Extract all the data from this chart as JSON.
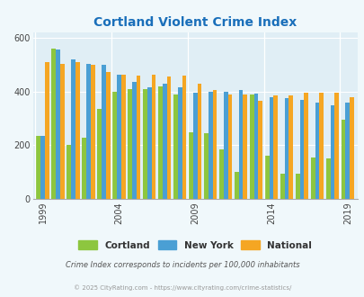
{
  "title": "Cortland Violent Crime Index",
  "title_color": "#1a6fba",
  "years": [
    1999,
    2000,
    2001,
    2002,
    2003,
    2004,
    2005,
    2006,
    2007,
    2008,
    2009,
    2010,
    2011,
    2012,
    2013,
    2014,
    2015,
    2016,
    2017,
    2018,
    2019
  ],
  "cortland": [
    235,
    560,
    200,
    230,
    335,
    400,
    410,
    410,
    420,
    390,
    250,
    245,
    185,
    100,
    390,
    160,
    95,
    95,
    155,
    150,
    295
  ],
  "newyork": [
    235,
    558,
    520,
    505,
    500,
    465,
    435,
    415,
    430,
    415,
    395,
    400,
    400,
    405,
    392,
    378,
    375,
    370,
    358,
    350,
    358
  ],
  "national": [
    510,
    505,
    510,
    500,
    475,
    465,
    460,
    465,
    455,
    460,
    430,
    405,
    390,
    390,
    367,
    385,
    385,
    395,
    395,
    395,
    380
  ],
  "cortland_color": "#8dc63f",
  "newyork_color": "#4a9fd4",
  "national_color": "#f5a623",
  "bg_color": "#f0f8fb",
  "plot_bg": "#e0eef5",
  "ylabel_ticks": [
    0,
    200,
    400,
    600
  ],
  "ylim": [
    0,
    620
  ],
  "xlabel_years": [
    1999,
    2004,
    2009,
    2014,
    2019
  ],
  "footnote1": "Crime Index corresponds to incidents per 100,000 inhabitants",
  "footnote2": "© 2025 CityRating.com - https://www.cityrating.com/crime-statistics/",
  "legend_labels": [
    "Cortland",
    "New York",
    "National"
  ]
}
